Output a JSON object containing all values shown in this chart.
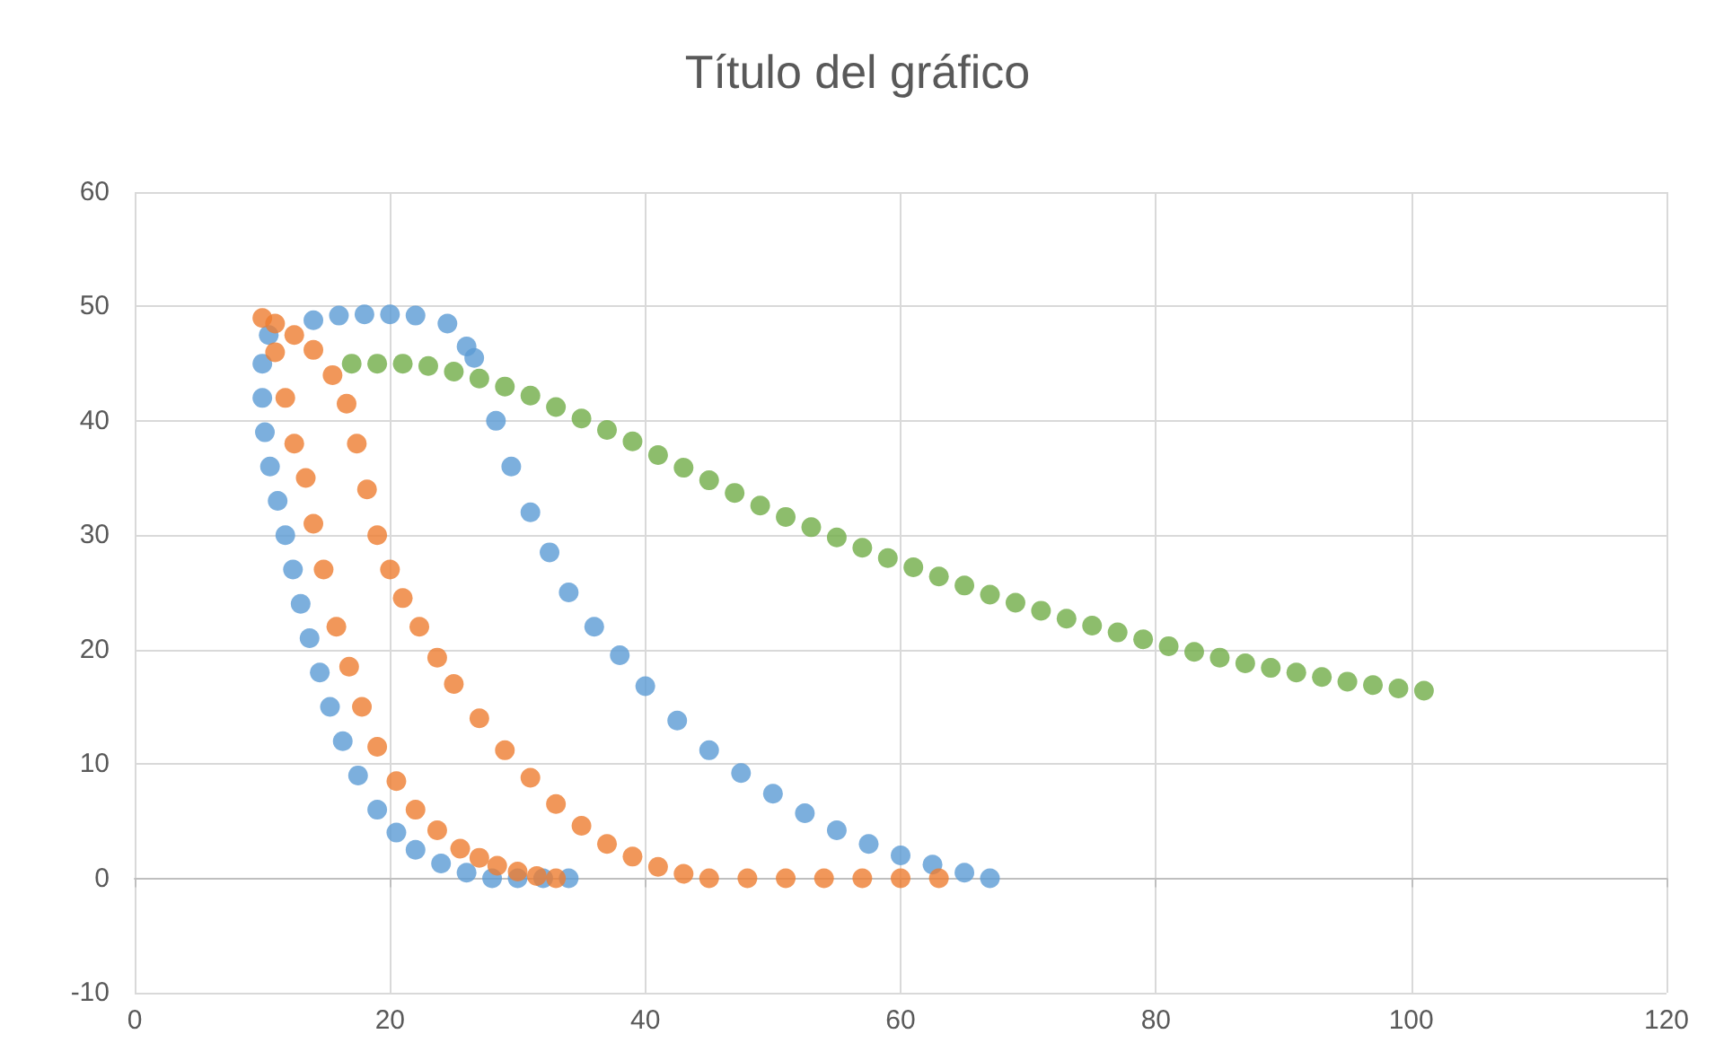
{
  "chart_data": {
    "type": "scatter",
    "title": "Título del gráfico",
    "xlim": [
      0,
      120
    ],
    "xticks": [
      0,
      20,
      40,
      60,
      80,
      100,
      120
    ],
    "ylim": [
      -10,
      60
    ],
    "yticks": [
      -10,
      0,
      10,
      20,
      30,
      40,
      50,
      60
    ],
    "grid": true,
    "marker": "circle",
    "series": [
      {
        "color": "#5b9bd5",
        "x": [
          67,
          65,
          62.5,
          60,
          57.5,
          55,
          52.5,
          50,
          47.5,
          45,
          42.5,
          40,
          38,
          36,
          34,
          32.5,
          31,
          29.5,
          28.3,
          26.6,
          26,
          24.5,
          22,
          20,
          18,
          16,
          14,
          10.5,
          10,
          10,
          10.2,
          10.6,
          11.2,
          11.8,
          12.4,
          13,
          13.7,
          14.5,
          15.3,
          16.3,
          17.5,
          19,
          20.5,
          22,
          24,
          26,
          28,
          30,
          32,
          34
        ],
        "values": [
          0,
          0.5,
          1.2,
          2,
          3,
          4.2,
          5.7,
          7.4,
          9.2,
          11.2,
          13.8,
          16.8,
          19.5,
          22,
          25,
          28.5,
          32,
          36,
          40,
          45.5,
          46.5,
          48.5,
          49.2,
          49.3,
          49.3,
          49.2,
          48.8,
          47.5,
          45,
          42,
          39,
          36,
          33,
          30,
          27,
          24,
          21,
          18,
          15,
          12,
          9,
          6,
          4,
          2.5,
          1.3,
          0.5,
          0,
          0,
          0,
          0
        ]
      },
      {
        "color": "#ed7d31",
        "x": [
          10,
          11,
          12.5,
          14,
          15.5,
          16.6,
          17.4,
          18.2,
          19,
          20,
          21,
          22.3,
          23.7,
          25,
          27,
          29,
          31,
          33,
          35,
          37,
          39,
          41,
          43,
          45,
          48,
          51,
          54,
          57,
          60,
          63,
          11,
          11.8,
          12.5,
          13.4,
          14,
          14.8,
          15.8,
          16.8,
          17.8,
          19,
          20.5,
          22,
          23.7,
          25.5,
          27,
          28.4,
          30,
          31.5,
          33
        ],
        "values": [
          49,
          48.5,
          47.5,
          46.2,
          44,
          41.5,
          38,
          34,
          30,
          27,
          24.5,
          22,
          19.3,
          17,
          14,
          11.2,
          8.8,
          6.5,
          4.6,
          3,
          1.9,
          1,
          0.4,
          0,
          0,
          0,
          0,
          0,
          0,
          0,
          46,
          42,
          38,
          35,
          31,
          27,
          22,
          18.5,
          15,
          11.5,
          8.5,
          6,
          4.2,
          2.6,
          1.8,
          1.1,
          0.6,
          0.2,
          0
        ]
      },
      {
        "color": "#70ad47",
        "x": [
          17,
          19,
          21,
          23,
          25,
          27,
          29,
          31,
          33,
          35,
          37,
          39,
          41,
          43,
          45,
          47,
          49,
          51,
          53,
          55,
          57,
          59,
          61,
          63,
          65,
          67,
          69,
          71,
          73,
          75,
          77,
          79,
          81,
          83,
          85,
          87,
          89,
          91,
          93,
          95,
          97,
          99,
          101
        ],
        "values": [
          45,
          45,
          45,
          44.8,
          44.3,
          43.7,
          43,
          42.2,
          41.2,
          40.2,
          39.2,
          38.2,
          37,
          35.9,
          34.8,
          33.7,
          32.6,
          31.6,
          30.7,
          29.8,
          28.9,
          28,
          27.2,
          26.4,
          25.6,
          24.8,
          24.1,
          23.4,
          22.7,
          22.1,
          21.5,
          20.9,
          20.3,
          19.8,
          19.3,
          18.8,
          18.4,
          18,
          17.6,
          17.2,
          16.9,
          16.6,
          16.4
        ]
      }
    ]
  }
}
